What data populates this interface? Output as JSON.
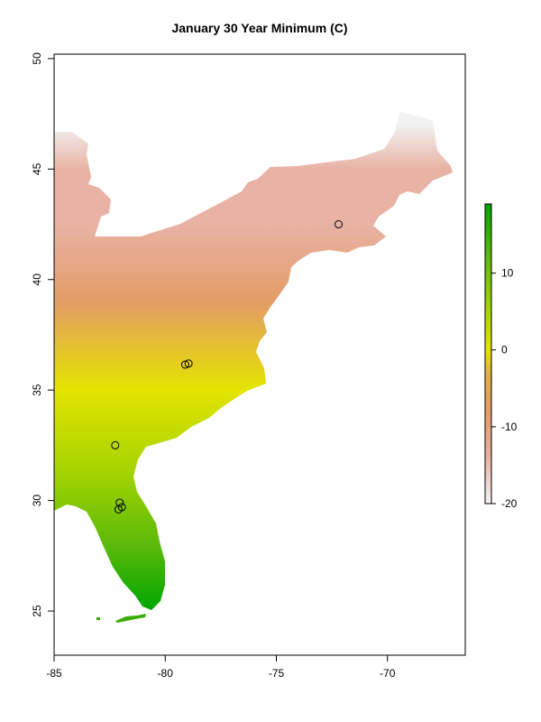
{
  "map": {
    "title": "January 30 Year Minimum (C)",
    "x_range": [
      -85,
      -66.5
    ],
    "y_range": [
      23,
      50.2
    ],
    "x_ticks": [
      -85,
      -80,
      -75,
      -70
    ],
    "y_ticks": [
      25,
      30,
      35,
      40,
      45,
      50
    ],
    "colorbar": {
      "range": [
        -20,
        19
      ],
      "ticks": [
        -20,
        -10,
        0,
        10
      ],
      "tick_labels": [
        "-20",
        "-10",
        "0",
        "10"
      ],
      "colors": [
        {
          "v": -20,
          "color": "#f2f2f2"
        },
        {
          "v": -14,
          "color": "#e8b2a4"
        },
        {
          "v": -8,
          "color": "#e39c66"
        },
        {
          "v": -3,
          "color": "#e0b23e"
        },
        {
          "v": 0,
          "color": "#e4e400"
        },
        {
          "v": 5,
          "color": "#a8d500"
        },
        {
          "v": 12,
          "color": "#5cba0a"
        },
        {
          "v": 19,
          "color": "#00a600"
        }
      ]
    },
    "sites": [
      {
        "lon": -72.2,
        "lat": 42.5
      },
      {
        "lon": -79.1,
        "lat": 36.15
      },
      {
        "lon": -78.95,
        "lat": 36.2
      },
      {
        "lon": -82.25,
        "lat": 32.5
      },
      {
        "lon": -82.05,
        "lat": 29.9
      },
      {
        "lon": -81.95,
        "lat": 29.7
      },
      {
        "lon": -82.1,
        "lat": 29.6
      }
    ]
  }
}
